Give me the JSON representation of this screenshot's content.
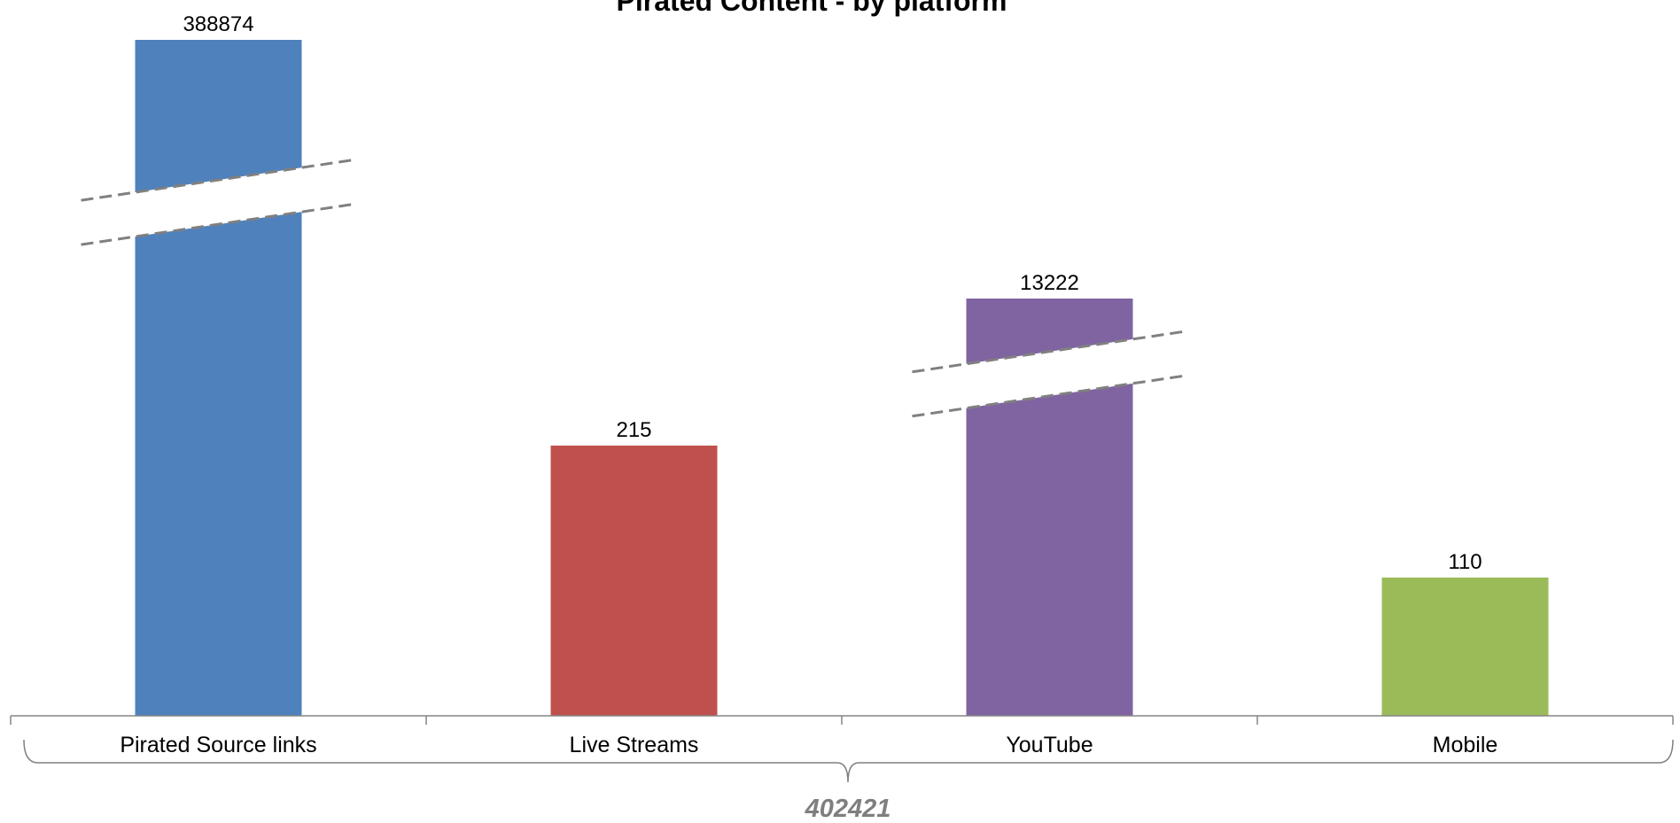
{
  "chart_data": {
    "type": "bar",
    "title": "Pirated Content - by platform",
    "categories": [
      "Pirated Source links",
      "Live Streams",
      "YouTube",
      "Mobile"
    ],
    "values": [
      388874,
      215,
      13222,
      110
    ],
    "colors": [
      "#4f81bd",
      "#c0504d",
      "#8064a2",
      "#9bbb59"
    ],
    "broken_axis_bars": [
      "Pirated Source links",
      "YouTube"
    ],
    "total_label": "402421",
    "xlabel": "",
    "ylabel": "",
    "grid": false,
    "legend": "none"
  }
}
